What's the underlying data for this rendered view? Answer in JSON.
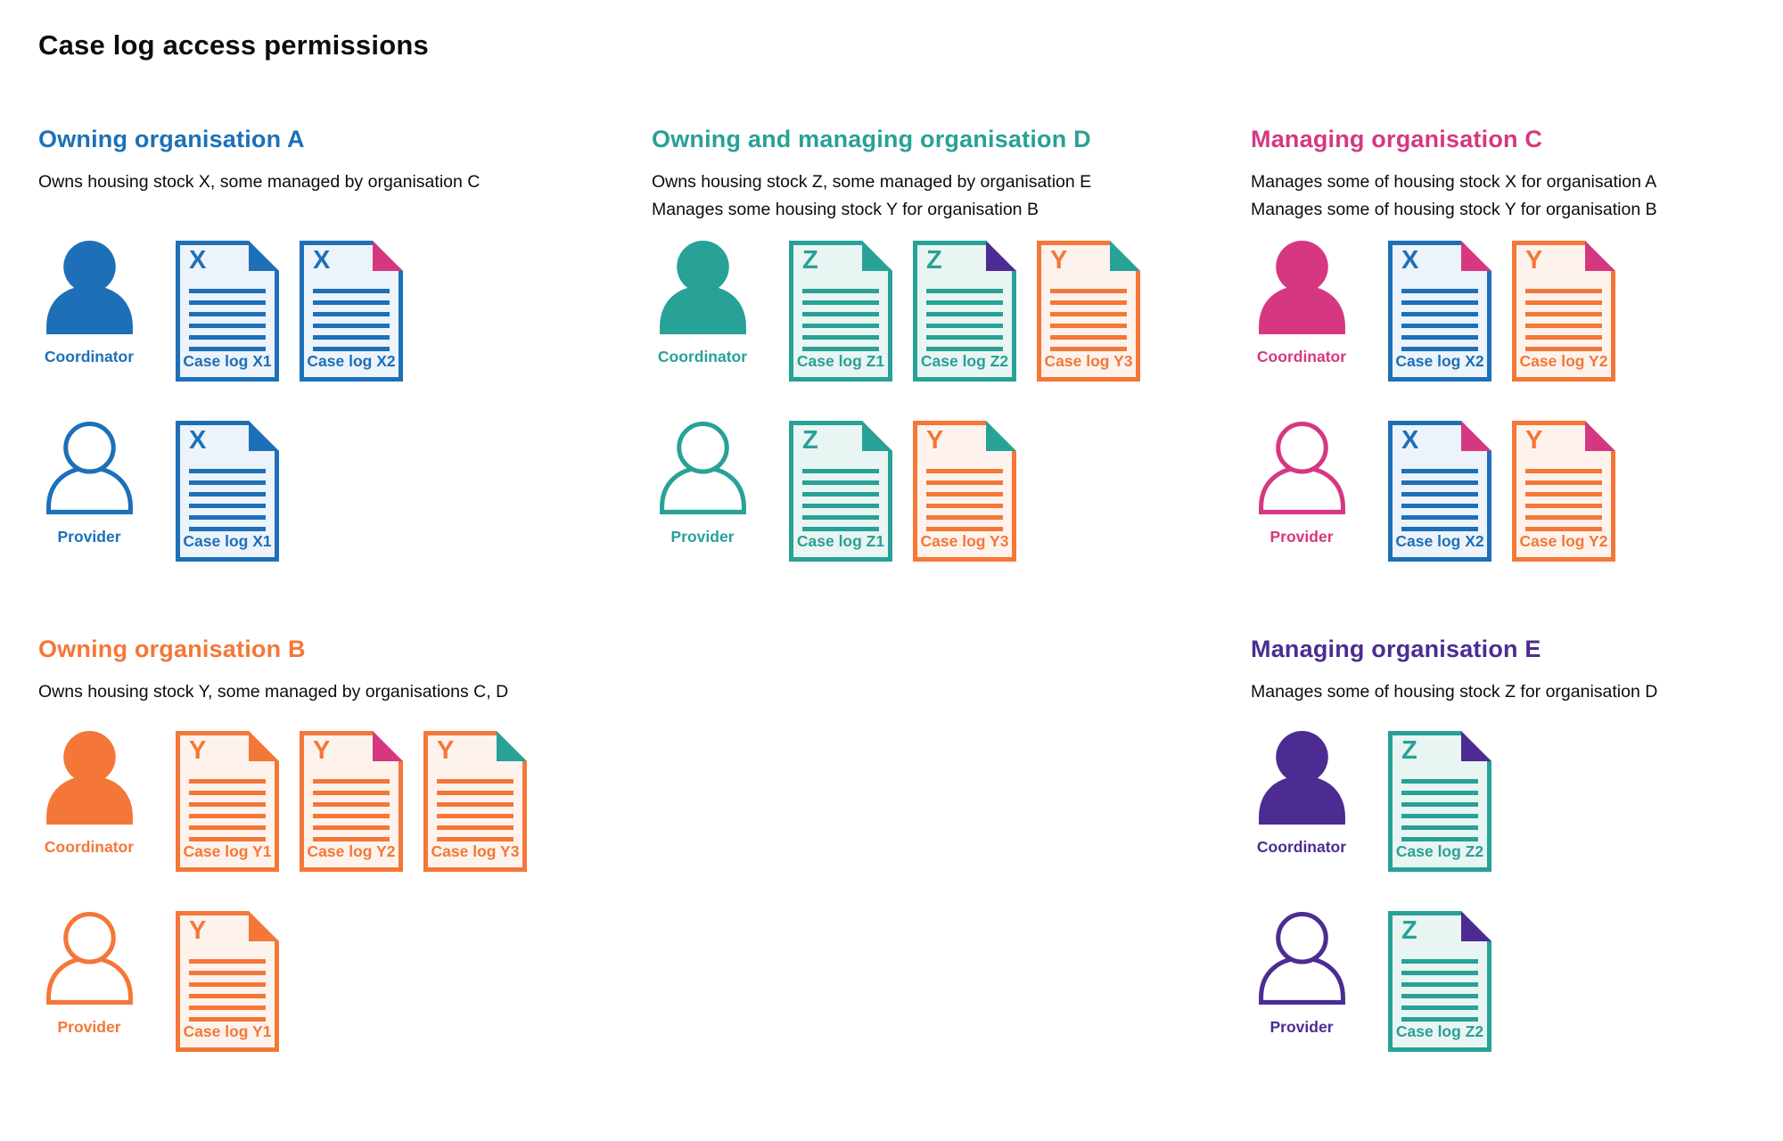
{
  "page": {
    "title": "Case log access permissions"
  },
  "colors": {
    "blue": "#1d70b8",
    "teal": "#28a197",
    "pink": "#d53880",
    "orange": "#f47738",
    "purple": "#4c2c92",
    "text": "#0b0c0c",
    "blue_tint": "#edf3fa",
    "teal_tint": "#e9f5f2",
    "orange_tint": "#fdf3ec"
  },
  "roles": {
    "coordinator": "Coordinator",
    "provider": "Provider"
  },
  "organisations": [
    {
      "id": "A",
      "name": "Owning organisation A",
      "color": "blue",
      "description": [
        "Owns housing stock X, some managed by organisation C"
      ],
      "rows": [
        {
          "role": "coordinator",
          "person_style": "solid",
          "docs": [
            {
              "letter": "X",
              "label": "Case log X1",
              "stock": "blue",
              "fold": "blue"
            },
            {
              "letter": "X",
              "label": "Case log X2",
              "stock": "blue",
              "fold": "pink"
            }
          ]
        },
        {
          "role": "provider",
          "person_style": "outline",
          "docs": [
            {
              "letter": "X",
              "label": "Case log X1",
              "stock": "blue",
              "fold": "blue"
            }
          ]
        }
      ]
    },
    {
      "id": "D",
      "name": "Owning and managing organisation D",
      "color": "teal",
      "description": [
        "Owns housing stock Z, some managed by organisation E",
        "Manages some housing stock Y for organisation B"
      ],
      "rows": [
        {
          "role": "coordinator",
          "person_style": "solid",
          "docs": [
            {
              "letter": "Z",
              "label": "Case log Z1",
              "stock": "teal",
              "fold": "teal"
            },
            {
              "letter": "Z",
              "label": "Case log Z2",
              "stock": "teal",
              "fold": "purple"
            },
            {
              "letter": "Y",
              "label": "Case log Y3",
              "stock": "orange",
              "fold": "teal"
            }
          ]
        },
        {
          "role": "provider",
          "person_style": "outline",
          "docs": [
            {
              "letter": "Z",
              "label": "Case log Z1",
              "stock": "teal",
              "fold": "teal"
            },
            {
              "letter": "Y",
              "label": "Case log Y3",
              "stock": "orange",
              "fold": "teal"
            }
          ]
        }
      ]
    },
    {
      "id": "C",
      "name": "Managing organisation C",
      "color": "pink",
      "description": [
        "Manages some of housing stock X for organisation A",
        "Manages some of housing stock Y for organisation B"
      ],
      "rows": [
        {
          "role": "coordinator",
          "person_style": "solid",
          "docs": [
            {
              "letter": "X",
              "label": "Case log X2",
              "stock": "blue",
              "fold": "pink"
            },
            {
              "letter": "Y",
              "label": "Case log Y2",
              "stock": "orange",
              "fold": "pink"
            }
          ]
        },
        {
          "role": "provider",
          "person_style": "outline",
          "docs": [
            {
              "letter": "X",
              "label": "Case log X2",
              "stock": "blue",
              "fold": "pink"
            },
            {
              "letter": "Y",
              "label": "Case log Y2",
              "stock": "orange",
              "fold": "pink"
            }
          ]
        }
      ]
    },
    {
      "id": "B",
      "name": "Owning organisation B",
      "color": "orange",
      "description": [
        "Owns housing stock Y, some managed by organisations C, D"
      ],
      "rows": [
        {
          "role": "coordinator",
          "person_style": "solid",
          "docs": [
            {
              "letter": "Y",
              "label": "Case log Y1",
              "stock": "orange",
              "fold": "orange"
            },
            {
              "letter": "Y",
              "label": "Case log Y2",
              "stock": "orange",
              "fold": "pink"
            },
            {
              "letter": "Y",
              "label": "Case log Y3",
              "stock": "orange",
              "fold": "teal"
            }
          ]
        },
        {
          "role": "provider",
          "person_style": "outline",
          "docs": [
            {
              "letter": "Y",
              "label": "Case log Y1",
              "stock": "orange",
              "fold": "orange"
            }
          ]
        }
      ]
    },
    {
      "id": "E",
      "name": "Managing organisation E",
      "color": "purple",
      "description": [
        "Manages some of housing stock Z for organisation D"
      ],
      "rows": [
        {
          "role": "coordinator",
          "person_style": "solid",
          "docs": [
            {
              "letter": "Z",
              "label": "Case log Z2",
              "stock": "teal",
              "fold": "purple"
            }
          ]
        },
        {
          "role": "provider",
          "person_style": "outline",
          "docs": [
            {
              "letter": "Z",
              "label": "Case log Z2",
              "stock": "teal",
              "fold": "purple"
            }
          ]
        }
      ]
    }
  ]
}
